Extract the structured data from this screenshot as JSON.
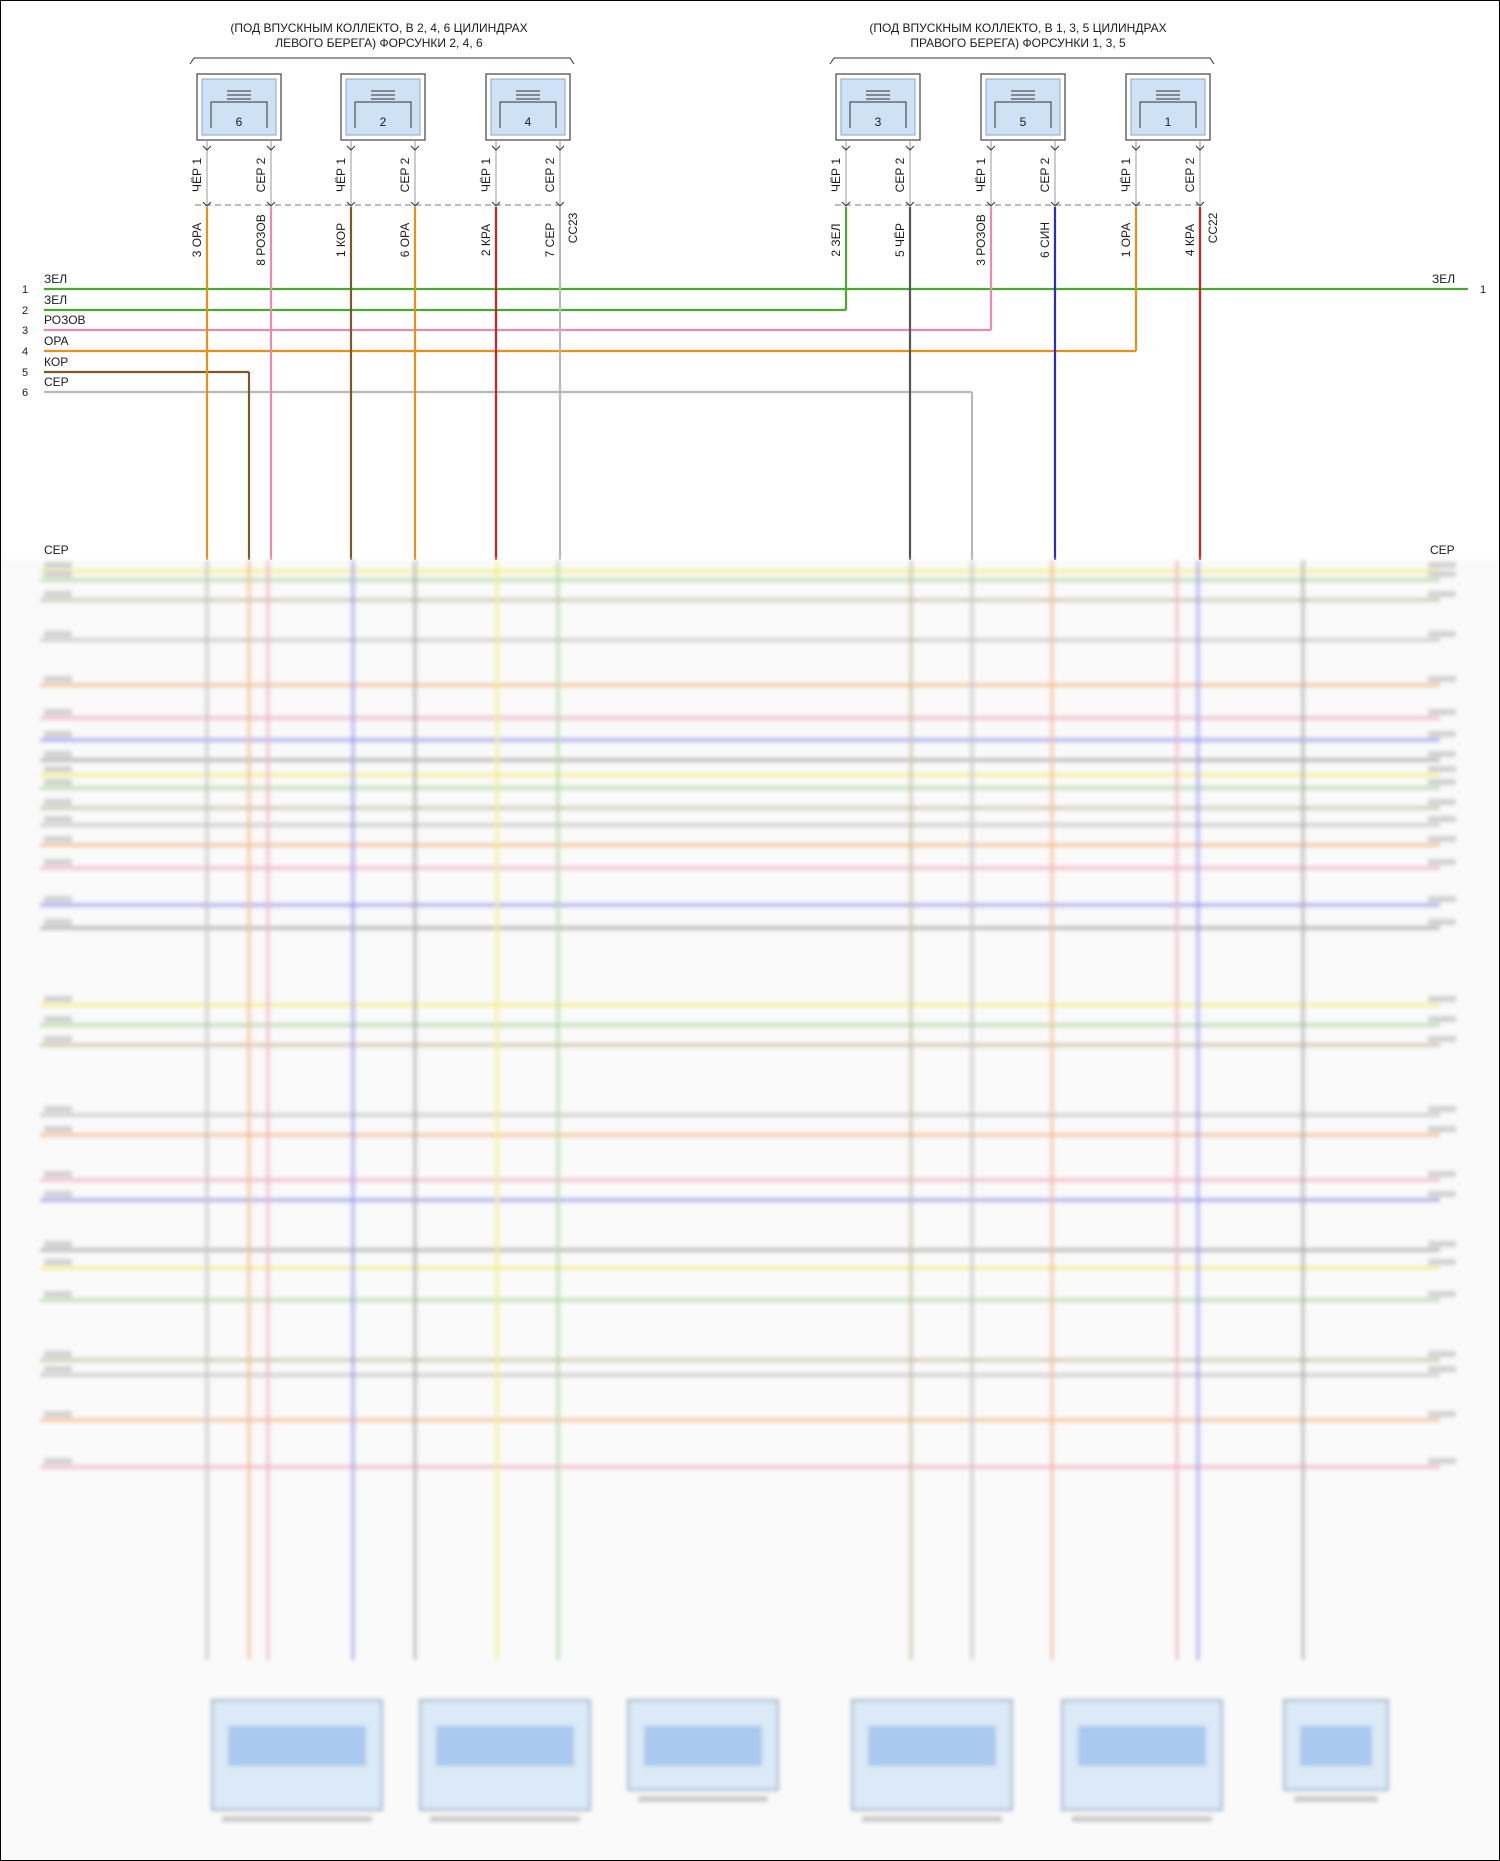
{
  "groups": {
    "left": {
      "line1": "(ПОД ВПУСКНЫМ КОЛЛЕКТО, В 2, 4, 6 ЦИЛИНДРАХ",
      "line2": "ЛЕВОГО БЕРЕГА) ФОРСУНКИ 2, 4, 6",
      "connector": "CC23"
    },
    "right": {
      "line1": "(ПОД ВПУСКНЫМ КОЛЛЕКТО, В 1, 3, 5 ЦИЛИНДРАХ",
      "line2": "ПРАВОГО БЕРЕГА) ФОРСУНКИ 1, 3, 5",
      "connector": "CC22"
    }
  },
  "injectors": [
    {
      "number": "6",
      "pin1": {
        "pin": "1",
        "color": "ЧЁР"
      },
      "pin2": {
        "pin": "2",
        "color": "СЕР"
      },
      "harness1": {
        "pin": "3",
        "color": "ОРА",
        "hex": "#e8901a"
      },
      "harness2": {
        "pin": "8",
        "color": "РОЗОВ",
        "hex": "#e58cb0"
      }
    },
    {
      "number": "2",
      "pin1": {
        "pin": "1",
        "color": "ЧЁР"
      },
      "pin2": {
        "pin": "2",
        "color": "СЕР"
      },
      "harness1": {
        "pin": "1",
        "color": "КОР",
        "hex": "#7a5a2a"
      },
      "harness2": {
        "pin": "6",
        "color": "ОРА",
        "hex": "#e8901a"
      }
    },
    {
      "number": "4",
      "pin1": {
        "pin": "1",
        "color": "ЧЁР"
      },
      "pin2": {
        "pin": "2",
        "color": "СЕР"
      },
      "harness1": {
        "pin": "2",
        "color": "КРА",
        "hex": "#d62020"
      },
      "harness2": {
        "pin": "7",
        "color": "СЕР",
        "hex": "#b8b8b8"
      }
    },
    {
      "number": "3",
      "pin1": {
        "pin": "1",
        "color": "ЧЁР"
      },
      "pin2": {
        "pin": "2",
        "color": "СЕР"
      },
      "harness1": {
        "pin": "2",
        "color": "ЗЕЛ",
        "hex": "#4aa832"
      },
      "harness2": {
        "pin": "5",
        "color": "ЧЁР",
        "hex": "#555555"
      }
    },
    {
      "number": "5",
      "pin1": {
        "pin": "1",
        "color": "ЧЁР"
      },
      "pin2": {
        "pin": "2",
        "color": "СЕР"
      },
      "harness1": {
        "pin": "3",
        "color": "РОЗОВ",
        "hex": "#e58cb0"
      },
      "harness2": {
        "pin": "6",
        "color": "СИН",
        "hex": "#2a2ad0"
      }
    },
    {
      "number": "1",
      "pin1": {
        "pin": "1",
        "color": "ЧЁР"
      },
      "pin2": {
        "pin": "2",
        "color": "СЕР"
      },
      "harness1": {
        "pin": "1",
        "color": "ОРА",
        "hex": "#e8901a"
      },
      "harness2": {
        "pin": "4",
        "color": "КРА",
        "hex": "#d62020"
      }
    }
  ],
  "bus_rows": [
    {
      "pin": "1",
      "label": "ЗЕЛ",
      "right_label": "ЗЕЛ",
      "right_pin": "1",
      "hex": "#4aa832"
    },
    {
      "pin": "2",
      "label": "ЗЕЛ",
      "hex": "#4aa832"
    },
    {
      "pin": "3",
      "label": "РОЗОВ",
      "hex": "#e58cb0"
    },
    {
      "pin": "4",
      "label": "ОРА",
      "hex": "#e8901a"
    },
    {
      "pin": "5",
      "label": "КОР",
      "hex": "#7a5a2a"
    },
    {
      "pin": "6",
      "label": "СЕР",
      "hex": "#b8b8b8"
    }
  ],
  "lower_section": {
    "left_label": "СЕР",
    "right_label": "СЕР",
    "blurred_note": "",
    "palette": [
      "#f4f080",
      "#b8dca8",
      "#cfc4a8",
      "#c8c8c8",
      "#f6c090",
      "#f0b8c8",
      "#a0a0f0",
      "#b0b0b0"
    ]
  }
}
